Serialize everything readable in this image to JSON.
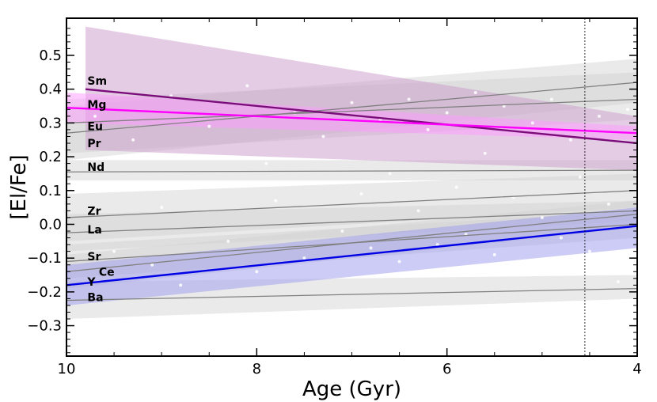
{
  "chart_data": {
    "type": "line",
    "xlabel": "Age (Gyr)",
    "ylabel": "[El/Fe]",
    "xlim": [
      10,
      4
    ],
    "ylim": [
      -0.39,
      0.61
    ],
    "xticks": [
      10,
      8,
      6,
      4
    ],
    "yticks": [
      0.5,
      0.4,
      0.3,
      0.2,
      0.1,
      0.0,
      -0.1,
      -0.2,
      -0.3
    ],
    "ytick_labels": [
      "0.5",
      "0.4",
      "0.3",
      "0.2",
      "0.1",
      "0.0",
      "−0.1",
      "−0.2",
      "−0.3"
    ],
    "reference_line": {
      "x": 4.55,
      "style": "dotted"
    },
    "colors": {
      "grey": "#808080",
      "band": "#c8c8c8",
      "Sm": "#7b0d7b",
      "Eu": "#ff00ff",
      "Y": "#0000e6"
    },
    "series": [
      {
        "name": "Sm",
        "label": "Sm",
        "x": [
          9.8,
          4
        ],
        "y": [
          0.4,
          0.24
        ],
        "band_lower": [
          0.22,
          0.16
        ],
        "band_upper": [
          0.585,
          0.32
        ],
        "color": "#7b0d7b",
        "band_color": "#cc99cc",
        "highlight": true
      },
      {
        "name": "Mg",
        "label": "Mg",
        "x": [
          10,
          4
        ],
        "y": [
          0.3,
          0.37
        ],
        "band_lower": [
          0.21,
          0.31
        ],
        "band_upper": [
          0.37,
          0.45
        ],
        "color": "#808080",
        "band_color": "#d0d0d0",
        "highlight": false
      },
      {
        "name": "Eu",
        "label": "Eu",
        "x": [
          10,
          4
        ],
        "y": [
          0.345,
          0.27
        ],
        "band_lower": [
          0.3,
          0.25
        ],
        "band_upper": [
          0.39,
          0.29
        ],
        "color": "#ff00ff",
        "band_color": "#ff99ff",
        "highlight": true
      },
      {
        "name": "Pr",
        "label": "Pr",
        "x": [
          10,
          4
        ],
        "y": [
          0.27,
          0.42
        ],
        "band_lower": [
          0.19,
          0.36
        ],
        "band_upper": [
          0.35,
          0.49
        ],
        "color": "#808080",
        "band_color": "#d0d0d0",
        "highlight": false
      },
      {
        "name": "Nd",
        "label": "Nd",
        "x": [
          10,
          4
        ],
        "y": [
          0.155,
          0.16
        ],
        "band_lower": [
          0.13,
          0.13
        ],
        "band_upper": [
          0.19,
          0.19
        ],
        "color": "#808080",
        "band_color": "#d0d0d0",
        "highlight": false
      },
      {
        "name": "Zr",
        "label": "Zr",
        "x": [
          10,
          4
        ],
        "y": [
          0.02,
          0.1
        ],
        "band_lower": [
          -0.05,
          0.05
        ],
        "band_upper": [
          0.09,
          0.15
        ],
        "color": "#808080",
        "band_color": "#d0d0d0",
        "highlight": false
      },
      {
        "name": "La",
        "label": "La",
        "x": [
          10,
          4
        ],
        "y": [
          -0.025,
          0.04
        ],
        "band_lower": [
          -0.08,
          0.01
        ],
        "band_upper": [
          0.03,
          0.07
        ],
        "color": "#808080",
        "band_color": "#d0d0d0",
        "highlight": false
      },
      {
        "name": "Sr",
        "label": "Sr",
        "x": [
          10,
          4
        ],
        "y": [
          -0.11,
          0.0
        ],
        "band_lower": [
          -0.16,
          -0.04
        ],
        "band_upper": [
          -0.06,
          0.04
        ],
        "color": "#808080",
        "band_color": "#d0d0d0",
        "highlight": false
      },
      {
        "name": "Ce",
        "label": "Ce",
        "x": [
          10,
          4
        ],
        "y": [
          -0.14,
          0.03
        ],
        "band_lower": [
          -0.19,
          -0.01
        ],
        "band_upper": [
          -0.09,
          0.07
        ],
        "color": "#808080",
        "band_color": "#d0d0d0",
        "highlight": false
      },
      {
        "name": "Y",
        "label": "Y",
        "x": [
          10,
          4
        ],
        "y": [
          -0.18,
          -0.005
        ],
        "band_lower": [
          -0.24,
          -0.07
        ],
        "band_upper": [
          -0.12,
          0.05
        ],
        "color": "#0000e6",
        "band_color": "#9999ee",
        "highlight": true
      },
      {
        "name": "Ba",
        "label": "Ba",
        "x": [
          10,
          4
        ],
        "y": [
          -0.225,
          -0.19
        ],
        "band_lower": [
          -0.28,
          -0.22
        ],
        "band_upper": [
          -0.17,
          -0.15
        ],
        "color": "#808080",
        "band_color": "#d0d0d0",
        "highlight": false
      }
    ],
    "element_labels": [
      {
        "text": "Sm",
        "x": 9.78,
        "y": 0.425
      },
      {
        "text": "Mg",
        "x": 9.78,
        "y": 0.355
      },
      {
        "text": "Eu",
        "x": 9.78,
        "y": 0.29
      },
      {
        "text": "Pr",
        "x": 9.78,
        "y": 0.24
      },
      {
        "text": "Nd",
        "x": 9.78,
        "y": 0.17
      },
      {
        "text": "Zr",
        "x": 9.78,
        "y": 0.04
      },
      {
        "text": "La",
        "x": 9.78,
        "y": -0.015
      },
      {
        "text": "Sr",
        "x": 9.78,
        "y": -0.095
      },
      {
        "text": "Ce",
        "x": 9.66,
        "y": -0.14
      },
      {
        "text": "Y",
        "x": 9.78,
        "y": -0.17
      },
      {
        "text": "Ba",
        "x": 9.78,
        "y": -0.215
      }
    ],
    "scatter_points": [
      [
        9.7,
        0.32
      ],
      [
        9.5,
        -0.08
      ],
      [
        9.3,
        0.25
      ],
      [
        9.1,
        -0.12
      ],
      [
        9.0,
        0.05
      ],
      [
        8.9,
        0.38
      ],
      [
        8.8,
        -0.18
      ],
      [
        8.6,
        0.12
      ],
      [
        8.5,
        0.29
      ],
      [
        8.3,
        -0.05
      ],
      [
        8.1,
        0.41
      ],
      [
        8.0,
        -0.14
      ],
      [
        7.9,
        0.18
      ],
      [
        7.8,
        0.07
      ],
      [
        7.6,
        0.33
      ],
      [
        7.5,
        -0.1
      ],
      [
        7.3,
        0.26
      ],
      [
        7.1,
        -0.02
      ],
      [
        7.0,
        0.36
      ],
      [
        6.9,
        0.09
      ],
      [
        6.8,
        -0.07
      ],
      [
        6.7,
        0.31
      ],
      [
        6.6,
        0.15
      ],
      [
        6.5,
        -0.11
      ],
      [
        6.4,
        0.37
      ],
      [
        6.3,
        0.04
      ],
      [
        6.2,
        0.28
      ],
      [
        6.1,
        -0.06
      ],
      [
        6.0,
        0.33
      ],
      [
        5.9,
        0.11
      ],
      [
        5.8,
        -0.03
      ],
      [
        5.7,
        0.39
      ],
      [
        5.6,
        0.21
      ],
      [
        5.5,
        -0.09
      ],
      [
        5.4,
        0.35
      ],
      [
        5.3,
        0.08
      ],
      [
        5.2,
        -0.15
      ],
      [
        5.1,
        0.3
      ],
      [
        5.0,
        0.02
      ],
      [
        4.9,
        0.37
      ],
      [
        4.8,
        -0.04
      ],
      [
        4.7,
        0.25
      ],
      [
        4.6,
        0.14
      ],
      [
        4.5,
        -0.08
      ],
      [
        4.4,
        0.32
      ],
      [
        4.3,
        0.06
      ],
      [
        4.2,
        -0.17
      ],
      [
        4.1,
        0.34
      ]
    ]
  }
}
